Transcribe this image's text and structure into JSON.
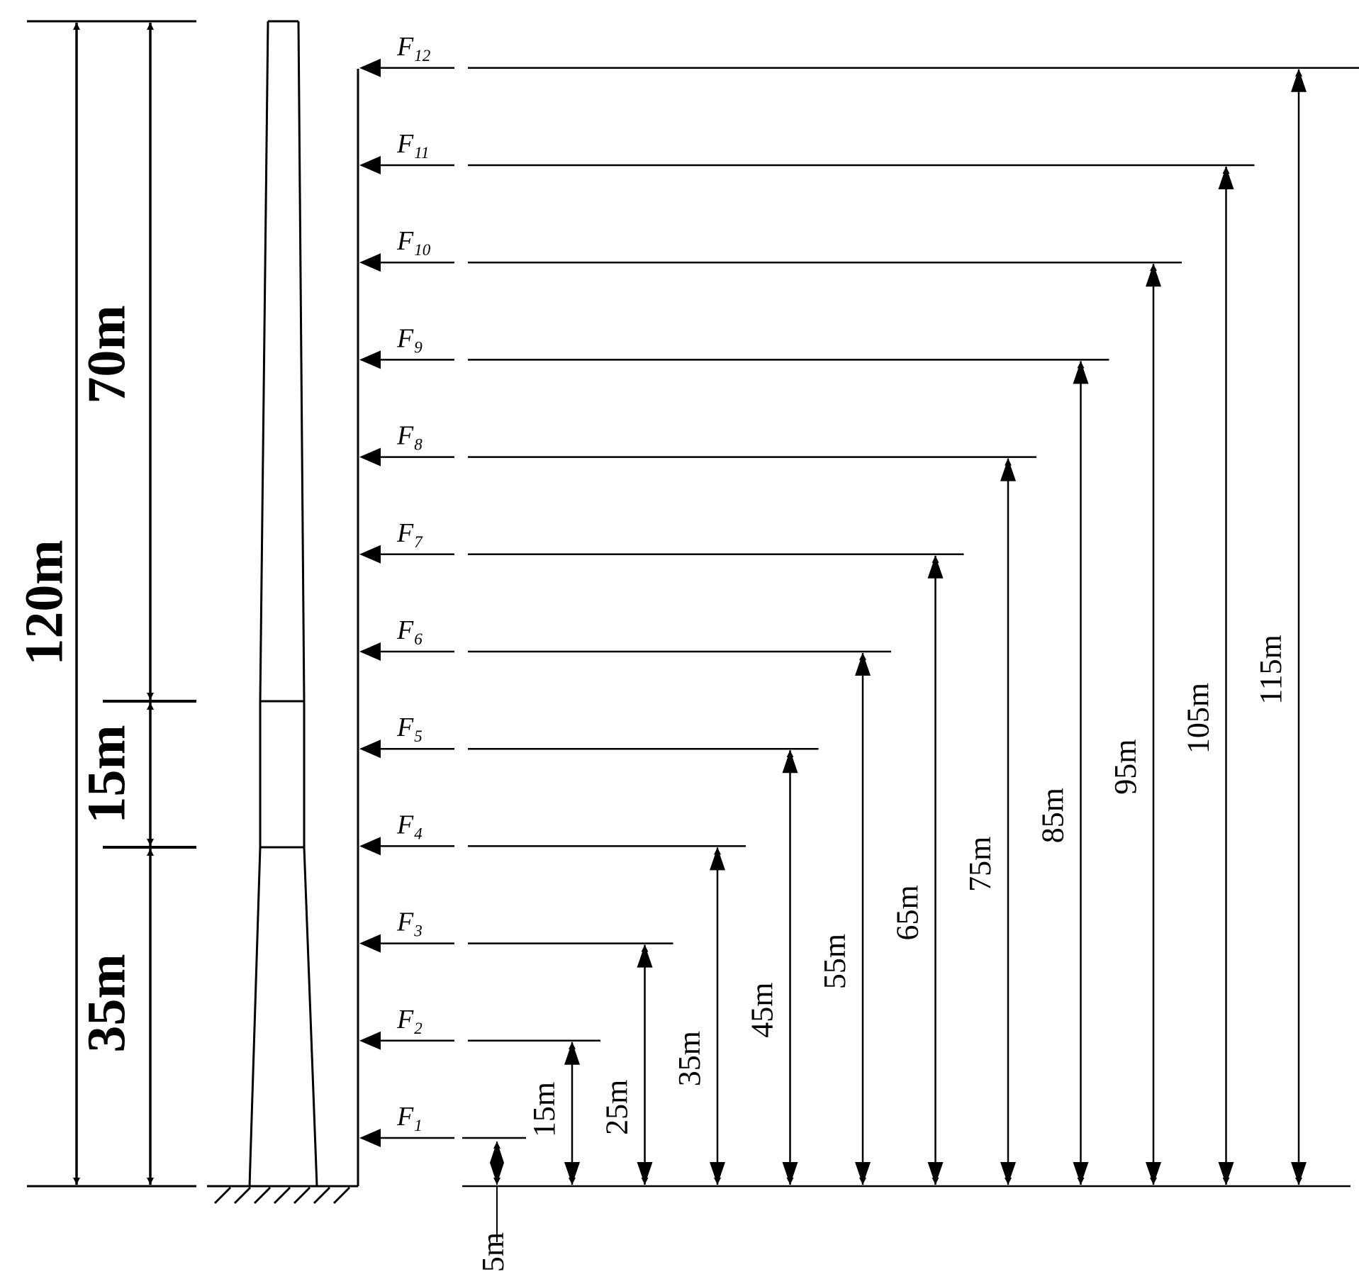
{
  "dimensions": {
    "total": "120m",
    "upper": "70m",
    "middle": "15m",
    "lower": "35m"
  },
  "base_offset": "5m",
  "forces": [
    {
      "symbol": "F",
      "sub": "1",
      "height": "5m"
    },
    {
      "symbol": "F",
      "sub": "2",
      "height": "15m"
    },
    {
      "symbol": "F",
      "sub": "3",
      "height": "25m"
    },
    {
      "symbol": "F",
      "sub": "4",
      "height": "35m"
    },
    {
      "symbol": "F",
      "sub": "5",
      "height": "45m"
    },
    {
      "symbol": "F",
      "sub": "6",
      "height": "55m"
    },
    {
      "symbol": "F",
      "sub": "7",
      "height": "65m"
    },
    {
      "symbol": "F",
      "sub": "8",
      "height": "75m"
    },
    {
      "symbol": "F",
      "sub": "9",
      "height": "85m"
    },
    {
      "symbol": "F",
      "sub": "10",
      "height": "95m"
    },
    {
      "symbol": "F",
      "sub": "11",
      "height": "105m"
    },
    {
      "symbol": "F",
      "sub": "12",
      "height": "115m"
    }
  ]
}
